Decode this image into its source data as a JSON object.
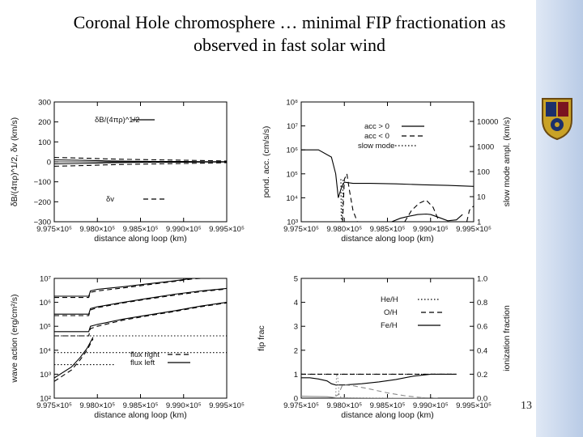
{
  "slide": {
    "title_line1": "Coronal Hole chromosphere … minimal FIP fractionation as",
    "title_line2": "observed in fast solar wind",
    "page_number": "13"
  },
  "colors": {
    "background": "#ffffff",
    "sidebar": "#c9d7ec",
    "accent_grey": "#888888"
  },
  "icons": {
    "crest": "university-crest-icon"
  },
  "chart_data": [
    {
      "type": "line",
      "xlabel": "distance along loop (km)",
      "ylabel": "δB/(4πρ)^1/2, δv (km/s)",
      "xlim": [
        997500,
        999500
      ],
      "ylim": [
        -300,
        300
      ],
      "x_ticks": [
        "9.975×10⁵",
        "9.980×10⁵",
        "9.985×10⁵",
        "9.990×10⁵",
        "9.995×10⁵"
      ],
      "x_tick_values": [
        997500,
        998000,
        998500,
        999000,
        999500
      ],
      "y_ticks": [
        "300",
        "200",
        "100",
        "0",
        "−100",
        "−200",
        "−300"
      ],
      "y_tick_values": [
        300,
        200,
        100,
        0,
        -100,
        -200,
        -300
      ],
      "legend": [
        "δB/(4πρ)^1/2",
        "δv"
      ],
      "series": [
        {
          "name": "δB/(4πρ)^1/2",
          "style": "solid",
          "x": [
            997500,
            997800,
            998100,
            998400,
            998700,
            999000,
            999300,
            999500
          ],
          "y": [
            10,
            8,
            5,
            3,
            2,
            2,
            1,
            1
          ]
        },
        {
          "name": "δB/(4πρ)^1/2",
          "style": "solid",
          "x": [
            997500,
            997800,
            998100,
            998400,
            998700,
            999000,
            999300,
            999500
          ],
          "y": [
            -10,
            -8,
            -5,
            -3,
            -2,
            -2,
            -1,
            -1
          ]
        },
        {
          "name": "δv",
          "style": "dashed",
          "x": [
            997500,
            997700,
            997900,
            998100,
            998400,
            998700,
            999000,
            999300,
            999500
          ],
          "y": [
            22,
            20,
            18,
            15,
            12,
            10,
            8,
            6,
            4
          ]
        },
        {
          "name": "δv",
          "style": "dashed",
          "x": [
            997500,
            997700,
            997900,
            998100,
            998400,
            998700,
            999000,
            999300,
            999500
          ],
          "y": [
            -22,
            -20,
            -18,
            -15,
            -12,
            -10,
            -8,
            -6,
            -4
          ]
        }
      ]
    },
    {
      "type": "line",
      "xlabel": "distance along loop (km)",
      "ylabel": "pond. acc. (cm/s/s)",
      "y2label": "slow mode ampl. (km/s)",
      "xlim": [
        997500,
        999500
      ],
      "ylim": [
        1000,
        100000000
      ],
      "yscale": "log",
      "x_ticks": [
        "9.975×10⁵",
        "9.980×10⁵",
        "9.985×10⁵",
        "9.990×10⁵",
        "9.995×10⁵"
      ],
      "x_tick_values": [
        997500,
        998000,
        998500,
        999000,
        999500
      ],
      "y_ticks": [
        "10⁸",
        "10⁷",
        "10⁶",
        "10⁵",
        "10⁴",
        "10³"
      ],
      "y_tick_values": [
        100000000,
        10000000,
        1000000,
        100000,
        10000,
        1000
      ],
      "y2_ticks": [
        "10000",
        "1000",
        "100",
        "10",
        "1"
      ],
      "legend": [
        "acc > 0",
        "acc < 0",
        "slow mode"
      ],
      "series": [
        {
          "name": "acc > 0",
          "style": "solid",
          "x": [
            997500,
            997700,
            997850,
            997900,
            997930,
            997970,
            998000,
            998100,
            998300,
            998600,
            998900,
            999200,
            999500
          ],
          "y": [
            1000000,
            1000000,
            500000,
            100000,
            10000,
            30000,
            45000,
            40000,
            40000,
            38000,
            35000,
            33000,
            30000
          ]
        },
        {
          "name": "acc > 0",
          "style": "solid",
          "x": [
            998550,
            998650,
            998750,
            998850,
            998950,
            999000,
            999100,
            999200,
            999300,
            999370
          ],
          "y": [
            1000,
            1400,
            1700,
            2000,
            2100,
            2000,
            1500,
            1100,
            1200,
            2000
          ]
        },
        {
          "name": "acc < 0",
          "style": "dashed",
          "x": [
            997980,
            998000,
            998030,
            998060,
            998100,
            998150
          ],
          "y": [
            1000,
            60000,
            100000,
            20000,
            3000,
            1000
          ]
        },
        {
          "name": "acc < 0",
          "style": "dashed",
          "x": [
            998700,
            998780,
            998870,
            998950,
            999030,
            999100
          ],
          "y": [
            1000,
            3000,
            6000,
            8000,
            4000,
            1000
          ]
        },
        {
          "name": "acc < 0",
          "style": "dashed",
          "x": [
            999420,
            999450,
            999480,
            999500
          ],
          "y": [
            1000,
            3000,
            4000,
            4500
          ]
        },
        {
          "name": "slow mode",
          "style": "dotted",
          "x": [
            997960,
            997965,
            997975,
            997985
          ],
          "y": [
            60000,
            1000,
            1000,
            60000
          ]
        }
      ]
    },
    {
      "type": "line",
      "xlabel": "distance along loop (km)",
      "ylabel": "wave action (erg/cm²/s)",
      "xlim": [
        997500,
        999500
      ],
      "ylim": [
        100,
        10000000
      ],
      "yscale": "log",
      "x_ticks": [
        "9.975×10⁵",
        "9.980×10⁵",
        "9.985×10⁵",
        "9.990×10⁵",
        "9.995×10⁵"
      ],
      "x_tick_values": [
        997500,
        998000,
        998500,
        999000,
        999500
      ],
      "y_ticks": [
        "10⁷",
        "10⁶",
        "10⁵",
        "10⁴",
        "10³",
        "10²"
      ],
      "y_tick_values": [
        10000000,
        1000000,
        100000,
        10000,
        1000,
        100
      ],
      "legend": [
        "flux right",
        "flux left"
      ],
      "series": [
        {
          "name": "flux left",
          "style": "solid",
          "x": [
            997500,
            997800,
            997900,
            997920,
            998000,
            998300,
            998600,
            998900,
            999100,
            999200
          ],
          "y": [
            1800000,
            1800000,
            1800000,
            3000000,
            3500000,
            4500000,
            6000000,
            8000000,
            10000000,
            10000000
          ]
        },
        {
          "name": "flux left",
          "style": "solid",
          "x": [
            997500,
            997800,
            997900,
            997920,
            998000,
            998300,
            998600,
            998900,
            999200,
            999500
          ],
          "y": [
            320000,
            320000,
            320000,
            550000,
            650000,
            1000000,
            1500000,
            2200000,
            3000000,
            3800000
          ]
        },
        {
          "name": "flux left",
          "style": "solid",
          "x": [
            997500,
            997800,
            997900,
            997920,
            998000,
            998300,
            998600,
            998900,
            999200,
            999500
          ],
          "y": [
            60000,
            60000,
            60000,
            100000,
            120000,
            200000,
            300000,
            450000,
            700000,
            1000000
          ]
        },
        {
          "name": "flux right",
          "style": "dashed",
          "x": [
            997500,
            997800,
            997900,
            997920,
            998000,
            998300,
            998600,
            998900,
            999100,
            999200
          ],
          "y": [
            1600000,
            1600000,
            1600000,
            2600000,
            3000000,
            4000000,
            5500000,
            7500000,
            9500000,
            10000000
          ]
        },
        {
          "name": "flux right",
          "style": "dashed",
          "x": [
            997500,
            997800,
            997900,
            997920,
            998000,
            998300,
            998600,
            998900,
            999200,
            999500
          ],
          "y": [
            280000,
            280000,
            280000,
            480000,
            600000,
            950000,
            1400000,
            2000000,
            2800000,
            3600000
          ]
        },
        {
          "name": "flux right",
          "style": "dashed",
          "x": [
            997500,
            997800,
            997900,
            997920,
            998000,
            998300,
            998600,
            998900,
            999200,
            999500
          ],
          "y": [
            40000,
            40000,
            40000,
            80000,
            100000,
            180000,
            280000,
            420000,
            650000,
            950000
          ]
        },
        {
          "name": "flux right",
          "style": "dashed",
          "x": [
            997500,
            997700,
            997800,
            997880,
            997950
          ],
          "y": [
            500,
            1500,
            4000,
            10000,
            30000
          ]
        },
        {
          "name": "flux left",
          "style": "solid",
          "x": [
            997500,
            997700,
            997800,
            997880,
            997950
          ],
          "y": [
            700,
            2000,
            5000,
            12000,
            35000
          ]
        },
        {
          "name": "",
          "style": "dotted",
          "x": [
            997500,
            999500
          ],
          "y": [
            40000,
            40000
          ]
        },
        {
          "name": "",
          "style": "dotted",
          "x": [
            997500,
            999500
          ],
          "y": [
            8000,
            8000
          ]
        },
        {
          "name": "",
          "style": "dotted",
          "x": [
            997500,
            998200
          ],
          "y": [
            2500,
            2500
          ]
        }
      ]
    },
    {
      "type": "line",
      "xlabel": "distance along loop (km)",
      "ylabel": "fip frac",
      "y2label": "ionization fraction",
      "xlim": [
        997500,
        999500
      ],
      "ylim": [
        0,
        5
      ],
      "y2lim": [
        0,
        1
      ],
      "x_ticks": [
        "9.975×10⁵",
        "9.980×10⁵",
        "9.985×10⁵",
        "9.990×10⁵",
        "9.995×10⁵"
      ],
      "x_tick_values": [
        997500,
        998000,
        998500,
        999000,
        999500
      ],
      "y_ticks": [
        "5",
        "4",
        "3",
        "2",
        "1",
        "0"
      ],
      "y_tick_values": [
        5,
        4,
        3,
        2,
        1,
        0
      ],
      "y2_ticks": [
        "1.0",
        "0.8",
        "0.6",
        "0.4",
        "0.2",
        "0.0"
      ],
      "y2_tick_values": [
        1,
        0.8,
        0.6,
        0.4,
        0.2,
        0
      ],
      "legend": [
        "He/H",
        "O/H",
        "Fe/H"
      ],
      "series": [
        {
          "name": "He/H",
          "style": "dotted",
          "x": [
            997500,
            997900,
            997930,
            998100,
            998400,
            998700,
            999000,
            999300
          ],
          "y": [
            1,
            1,
            1,
            1,
            1,
            1,
            1,
            1
          ]
        },
        {
          "name": "O/H",
          "style": "dashed",
          "x": [
            997500,
            997900,
            997930,
            998100,
            998400,
            998700,
            999000,
            999300
          ],
          "y": [
            1,
            1,
            1,
            1,
            1,
            1,
            1,
            1
          ]
        },
        {
          "name": "Fe/H",
          "style": "solid",
          "x": [
            997500,
            997600,
            997700,
            997800,
            997850,
            997900,
            998000,
            998200,
            998400,
            998600,
            998800,
            999000,
            999300
          ],
          "y": [
            0.85,
            0.85,
            0.8,
            0.72,
            0.6,
            0.55,
            0.55,
            0.6,
            0.68,
            0.78,
            0.92,
            1,
            1
          ]
        },
        {
          "name": "ionization fraction",
          "style": "dashed-grey",
          "x": [
            997900,
            997930,
            997980,
            998100,
            998300,
            998500,
            998700,
            998900,
            999100
          ],
          "y": [
            0.08,
            0.15,
            0.56,
            0.52,
            0.38,
            0.22,
            0.1,
            0.02,
            0
          ]
        },
        {
          "name": "ionization fraction",
          "style": "dotted-grey",
          "x": [
            997900,
            997910,
            997920,
            997930,
            997940,
            997960,
            998000,
            998100,
            998300,
            998600,
            998900
          ],
          "y": [
            0.1,
            1,
            1,
            0.6,
            0.1,
            0.04,
            0.02,
            0.01,
            0.01,
            0,
            0
          ]
        },
        {
          "name": "ionization fraction",
          "style": "solid-grey",
          "x": [
            997500,
            997800,
            997900,
            998000,
            998300,
            998600,
            998900
          ],
          "y": [
            0.08,
            0.06,
            0.02,
            0.01,
            0,
            0,
            0
          ]
        }
      ]
    }
  ]
}
